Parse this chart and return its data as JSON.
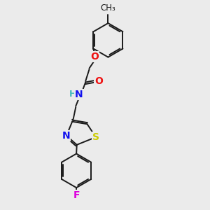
{
  "background_color": "#ebebeb",
  "bond_color": "#1a1a1a",
  "atom_colors": {
    "O": "#ee1111",
    "N": "#1111ee",
    "S": "#cccc00",
    "F": "#dd00dd",
    "C": "#1a1a1a",
    "H": "#44bbbb"
  },
  "font_size": 10,
  "bond_width": 1.4,
  "title": ""
}
